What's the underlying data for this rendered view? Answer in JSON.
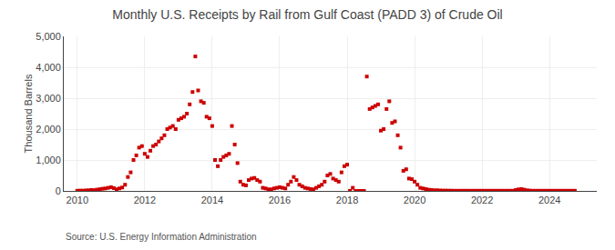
{
  "chart_data": {
    "type": "scatter",
    "title": "Monthly U.S. Receipts by Rail from Gulf Coast (PADD 3) of Crude Oil",
    "ylabel": "Thousand Barrels",
    "annotations": [
      "Source: U.S. Energy Information Administration"
    ],
    "color": "#cc0000",
    "marker": "square",
    "grid": true,
    "xlim": [
      2009.6,
      2025.4
    ],
    "xticks": [
      2010,
      2012,
      2014,
      2016,
      2018,
      2020,
      2022,
      2024
    ],
    "ylim": [
      0,
      5000
    ],
    "yticks": [
      0,
      {
        "value": 1000,
        "label": "1,000"
      },
      {
        "value": 2000,
        "label": "2,000"
      },
      {
        "value": 3000,
        "label": "3,000"
      },
      {
        "value": 4000,
        "label": "4,000"
      },
      {
        "value": 5000,
        "label": "5,000"
      }
    ],
    "x": [
      2010.0,
      2010.083,
      2010.167,
      2010.25,
      2010.333,
      2010.417,
      2010.5,
      2010.583,
      2010.667,
      2010.75,
      2010.833,
      2010.917,
      2011.0,
      2011.083,
      2011.167,
      2011.25,
      2011.333,
      2011.417,
      2011.5,
      2011.583,
      2011.667,
      2011.75,
      2011.833,
      2011.917,
      2012.0,
      2012.083,
      2012.167,
      2012.25,
      2012.333,
      2012.417,
      2012.5,
      2012.583,
      2012.667,
      2012.75,
      2012.833,
      2012.917,
      2013.0,
      2013.083,
      2013.167,
      2013.25,
      2013.333,
      2013.417,
      2013.5,
      2013.583,
      2013.667,
      2013.75,
      2013.833,
      2013.917,
      2014.0,
      2014.083,
      2014.167,
      2014.25,
      2014.333,
      2014.417,
      2014.5,
      2014.583,
      2014.667,
      2014.75,
      2014.833,
      2014.917,
      2015.0,
      2015.083,
      2015.167,
      2015.25,
      2015.333,
      2015.417,
      2015.5,
      2015.583,
      2015.667,
      2015.75,
      2015.833,
      2015.917,
      2016.0,
      2016.083,
      2016.167,
      2016.25,
      2016.333,
      2016.417,
      2016.5,
      2016.583,
      2016.667,
      2016.75,
      2016.833,
      2016.917,
      2017.0,
      2017.083,
      2017.167,
      2017.25,
      2017.333,
      2017.417,
      2017.5,
      2017.583,
      2017.667,
      2017.75,
      2017.833,
      2017.917,
      2018.0,
      2018.083,
      2018.167,
      2018.25,
      2018.333,
      2018.417,
      2018.5,
      2018.583,
      2018.667,
      2018.75,
      2018.833,
      2018.917,
      2019.0,
      2019.083,
      2019.167,
      2019.25,
      2019.333,
      2019.417,
      2019.5,
      2019.583,
      2019.667,
      2019.75,
      2019.833,
      2019.917,
      2020.0,
      2020.083,
      2020.167,
      2020.25,
      2020.333,
      2020.417,
      2020.5,
      2020.583,
      2020.667,
      2020.75,
      2020.833,
      2020.917,
      2021.0,
      2021.083,
      2021.167,
      2021.25,
      2021.333,
      2021.417,
      2021.5,
      2021.583,
      2021.667,
      2021.75,
      2021.833,
      2021.917,
      2022.0,
      2022.083,
      2022.167,
      2022.25,
      2022.333,
      2022.417,
      2022.5,
      2022.583,
      2022.667,
      2022.75,
      2022.833,
      2022.917,
      2023.0,
      2023.083,
      2023.167,
      2023.25,
      2023.333,
      2023.417,
      2023.5,
      2023.583,
      2023.667,
      2023.75,
      2023.833,
      2023.917,
      2024.0,
      2024.083,
      2024.167,
      2024.25,
      2024.333,
      2024.417,
      2024.5,
      2024.583,
      2024.667,
      2024.75
    ],
    "values": [
      5,
      10,
      8,
      15,
      20,
      30,
      25,
      40,
      55,
      70,
      80,
      100,
      120,
      90,
      50,
      80,
      110,
      200,
      450,
      600,
      1000,
      1150,
      1400,
      1450,
      1200,
      1100,
      1300,
      1450,
      1500,
      1600,
      1700,
      1800,
      2000,
      2050,
      2100,
      2000,
      2300,
      2350,
      2400,
      2500,
      2800,
      3200,
      4350,
      3250,
      2900,
      2850,
      2400,
      2350,
      2100,
      1000,
      800,
      1000,
      1100,
      1150,
      1200,
      2100,
      1500,
      900,
      300,
      200,
      180,
      350,
      400,
      420,
      350,
      300,
      100,
      80,
      50,
      50,
      80,
      100,
      120,
      100,
      80,
      200,
      300,
      450,
      350,
      200,
      150,
      100,
      80,
      60,
      50,
      100,
      150,
      200,
      300,
      500,
      550,
      400,
      350,
      300,
      600,
      800,
      850,
      2,
      100,
      0,
      0,
      0,
      0,
      3700,
      2650,
      2700,
      2750,
      2800,
      1950,
      2000,
      2650,
      2900,
      2200,
      2250,
      1800,
      1400,
      650,
      700,
      400,
      380,
      300,
      200,
      100,
      80,
      60,
      40,
      30,
      20,
      20,
      15,
      10,
      10,
      8,
      8,
      5,
      5,
      5,
      5,
      5,
      5,
      5,
      5,
      5,
      5,
      5,
      5,
      5,
      5,
      5,
      5,
      5,
      5,
      5,
      5,
      5,
      5,
      30,
      50,
      60,
      40,
      20,
      10,
      5,
      5,
      5,
      5,
      5,
      5,
      5,
      5,
      5,
      5,
      5,
      5,
      5,
      5,
      5,
      5
    ]
  }
}
